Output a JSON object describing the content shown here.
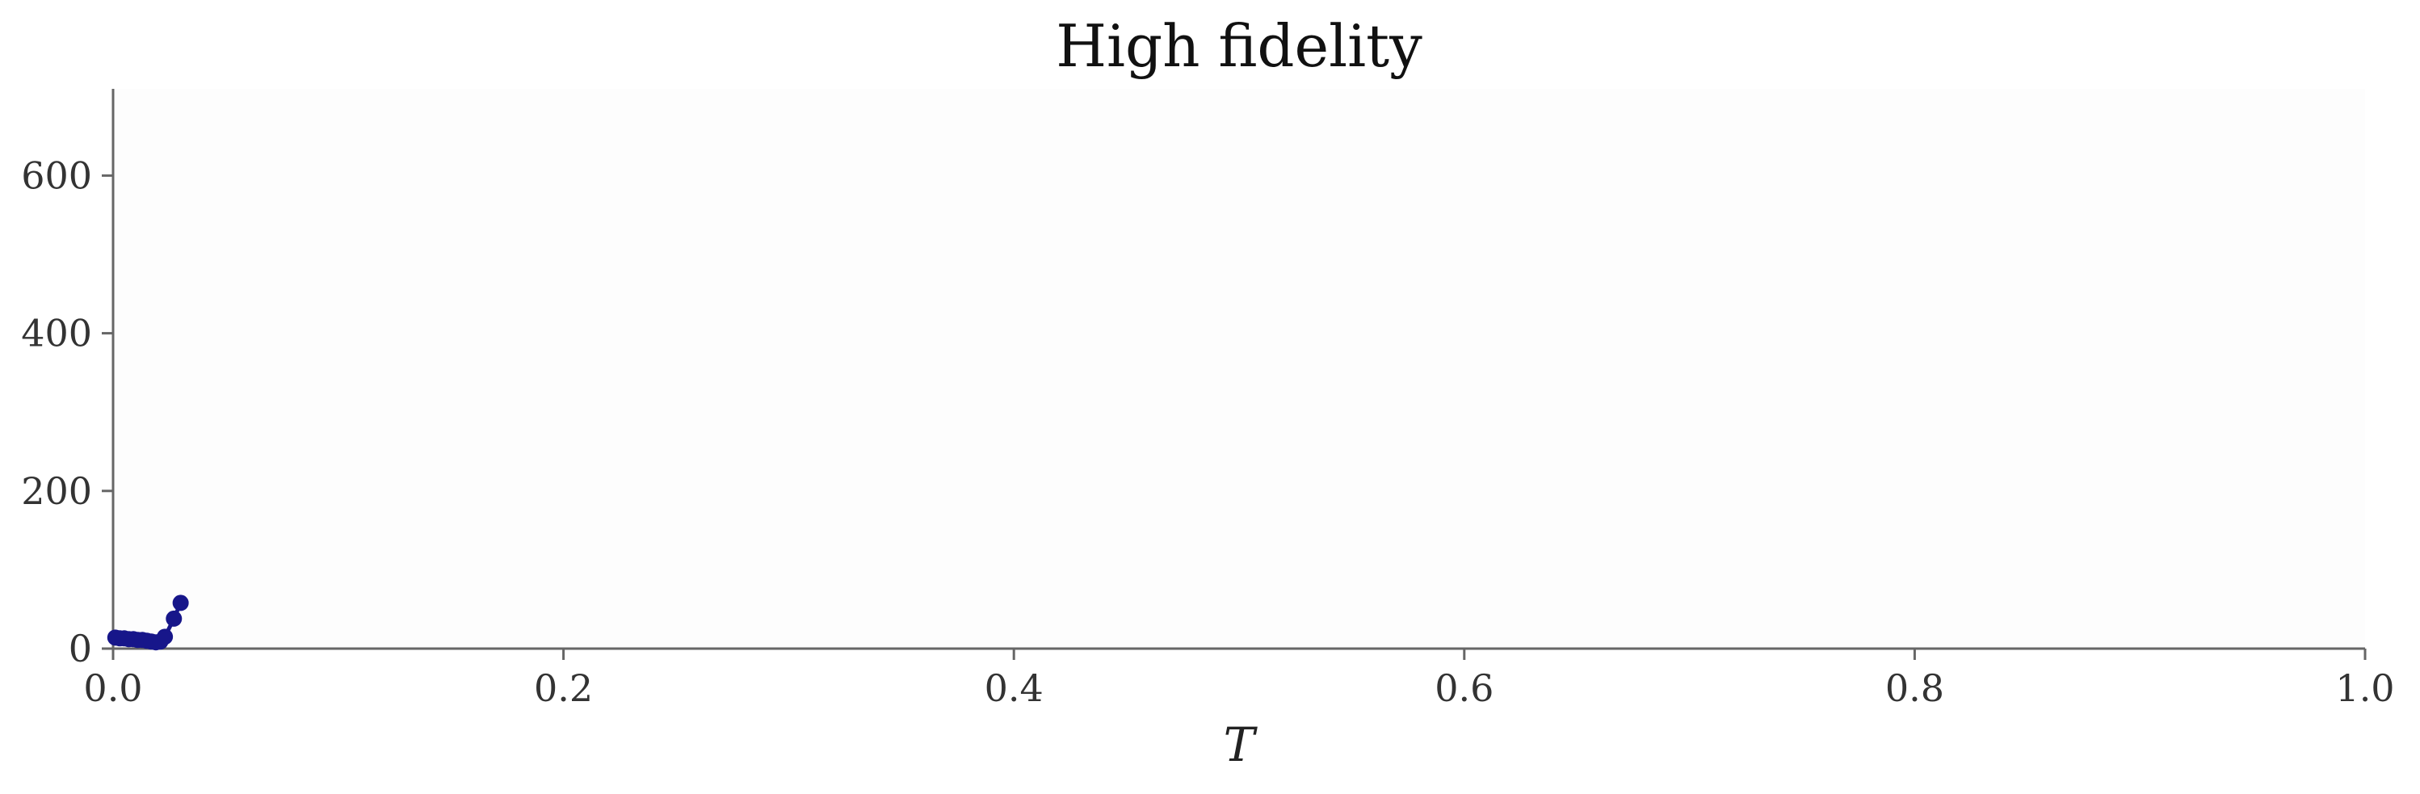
{
  "chart_data": {
    "type": "line",
    "title": "High fidelity",
    "xlabel": "T",
    "ylabel": "",
    "xlim": [
      0.0,
      1.0
    ],
    "ylim": [
      0,
      710
    ],
    "xticks": [
      0.0,
      0.2,
      0.4,
      0.6,
      0.8,
      1.0
    ],
    "xtick_labels": [
      "0.0",
      "0.2",
      "0.4",
      "0.6",
      "0.8",
      "1.0"
    ],
    "yticks": [
      0,
      200,
      400,
      600
    ],
    "ytick_labels": [
      "0",
      "200",
      "400",
      "600"
    ],
    "grid": false,
    "legend": "none",
    "background_color": "#fdfdfd",
    "series": [
      {
        "color": "#17168a",
        "points": [
          {
            "x": 0.001,
            "y": 14
          },
          {
            "x": 0.003,
            "y": 13
          },
          {
            "x": 0.005,
            "y": 13
          },
          {
            "x": 0.007,
            "y": 12
          },
          {
            "x": 0.009,
            "y": 12
          },
          {
            "x": 0.011,
            "y": 11
          },
          {
            "x": 0.013,
            "y": 11
          },
          {
            "x": 0.015,
            "y": 10
          },
          {
            "x": 0.017,
            "y": 9
          },
          {
            "x": 0.019,
            "y": 8
          },
          {
            "x": 0.021,
            "y": 9
          },
          {
            "x": 0.023,
            "y": 15
          },
          {
            "x": 0.027,
            "y": 38
          },
          {
            "x": 0.03,
            "y": 58
          }
        ]
      }
    ]
  }
}
